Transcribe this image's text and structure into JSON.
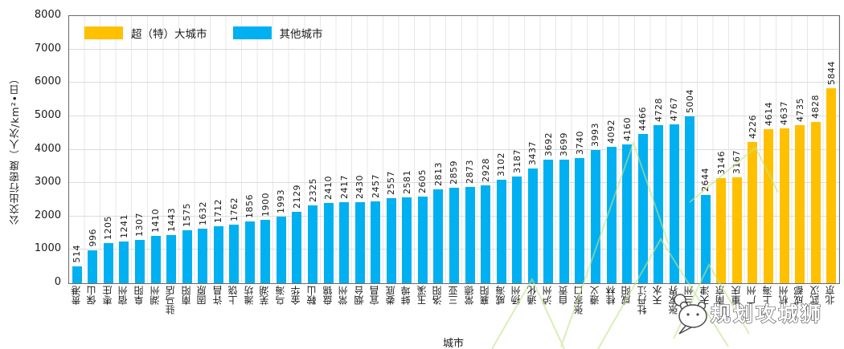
{
  "watermark": {
    "brand_text": "规划攻城狮"
  },
  "chart_data": {
    "type": "bar",
    "title": "",
    "xlabel": "城市",
    "ylabel": "公交出行密度（人次/km²•日）",
    "ylim": [
      0,
      8000
    ],
    "yticks": [
      0,
      1000,
      2000,
      3000,
      4000,
      5000,
      6000,
      7000,
      8000
    ],
    "grid": "on",
    "legend_position": "top-left-inside",
    "legend": [
      {
        "label": "超（特）大城市",
        "color": "#FFC000",
        "group": "mega"
      },
      {
        "label": "其他城市",
        "color": "#00B0F0",
        "group": "other"
      }
    ],
    "categories": [
      "贵港",
      "保山",
      "枣庄",
      "宿州",
      "阜阳",
      "湖州",
      "驻马店",
      "南阳",
      "固原",
      "许昌",
      "上饶",
      "潍坊",
      "芜湖",
      "乌海",
      "金华",
      "鞍山",
      "盘锦",
      "常州",
      "烟台",
      "宜昌",
      "娄底",
      "蚌埠",
      "玉溪",
      "洛阳",
      "三亚",
      "常德",
      "襄阳",
      "威海",
      "扬州",
      "通化",
      "泸州",
      "自贡",
      "张家口",
      "遵义",
      "桂林",
      "咸阳",
      "牡丹江",
      "天水",
      "张家界",
      "兰州",
      "天津",
      "南京",
      "重庆",
      "广州",
      "上海",
      "杭州",
      "成都",
      "武汉",
      "北京"
    ],
    "values": [
      514,
      996,
      1205,
      1241,
      1307,
      1410,
      1443,
      1575,
      1632,
      1712,
      1762,
      1856,
      1900,
      1993,
      2129,
      2325,
      2410,
      2417,
      2430,
      2457,
      2557,
      2581,
      2605,
      2813,
      2859,
      2873,
      2928,
      3102,
      3187,
      3437,
      3692,
      3699,
      3740,
      3993,
      4092,
      4160,
      4466,
      4728,
      4767,
      5004,
      2644,
      3146,
      3167,
      4226,
      4614,
      4637,
      4735,
      4828,
      5844
    ],
    "groups": [
      "other",
      "other",
      "other",
      "other",
      "other",
      "other",
      "other",
      "other",
      "other",
      "other",
      "other",
      "other",
      "other",
      "other",
      "other",
      "other",
      "other",
      "other",
      "other",
      "other",
      "other",
      "other",
      "other",
      "other",
      "other",
      "other",
      "other",
      "other",
      "other",
      "other",
      "other",
      "other",
      "other",
      "other",
      "other",
      "other",
      "other",
      "other",
      "other",
      "other",
      "other",
      "mega",
      "mega",
      "mega",
      "mega",
      "mega",
      "mega",
      "mega",
      "mega"
    ]
  }
}
